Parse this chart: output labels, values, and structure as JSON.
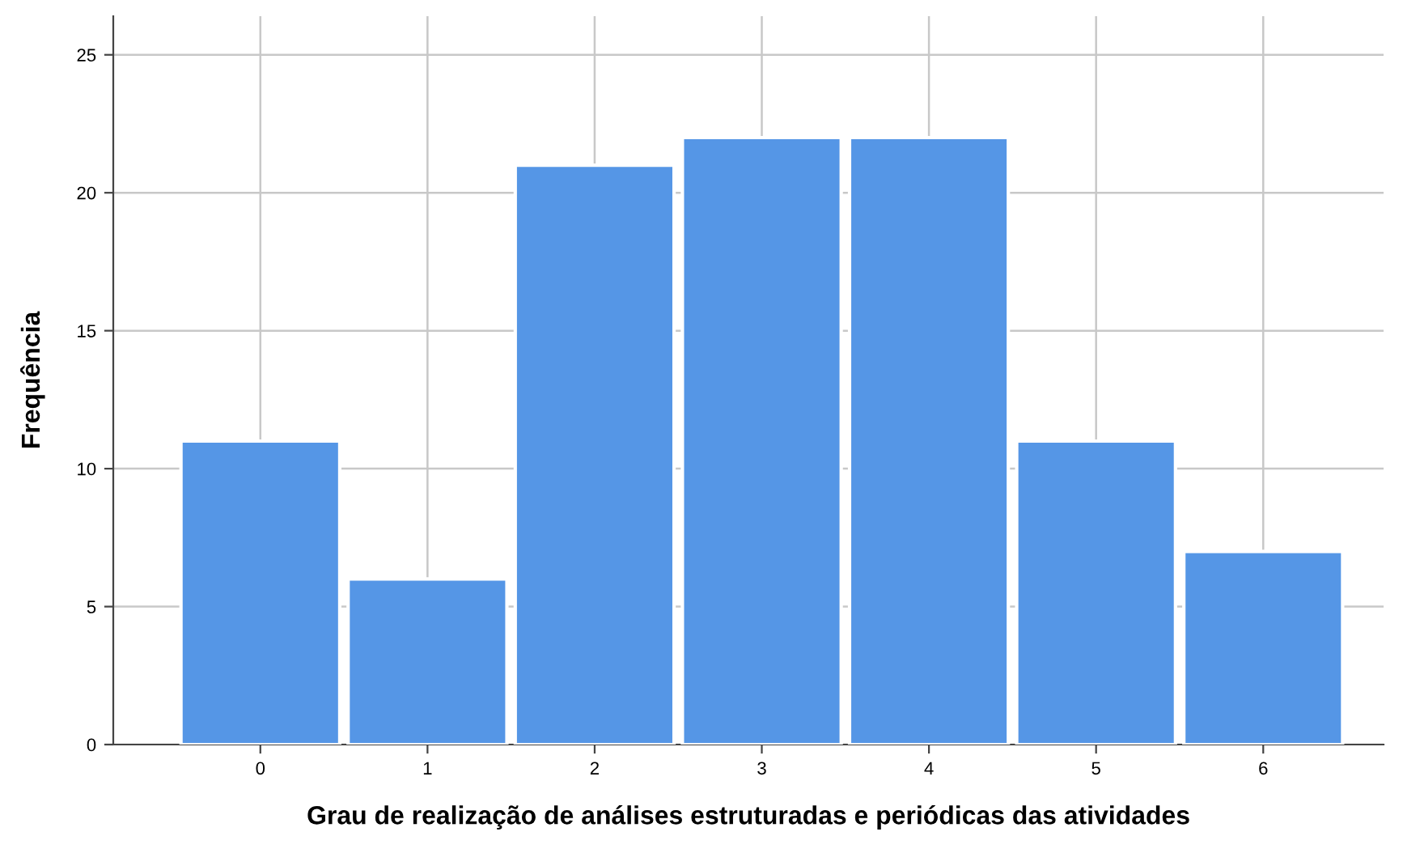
{
  "chart_data": {
    "type": "bar",
    "xlabel": "Grau de realização de análises estruturadas e periódicas das atividades",
    "ylabel": "Frequência",
    "categories": [
      "0",
      "1",
      "2",
      "3",
      "4",
      "5",
      "6"
    ],
    "values": [
      11,
      6,
      21,
      22,
      22,
      11,
      7
    ],
    "color": "#5596e6",
    "ylim": [
      0,
      26.4
    ],
    "yticks": [
      0,
      5,
      10,
      15,
      20,
      25
    ],
    "grid": true
  }
}
